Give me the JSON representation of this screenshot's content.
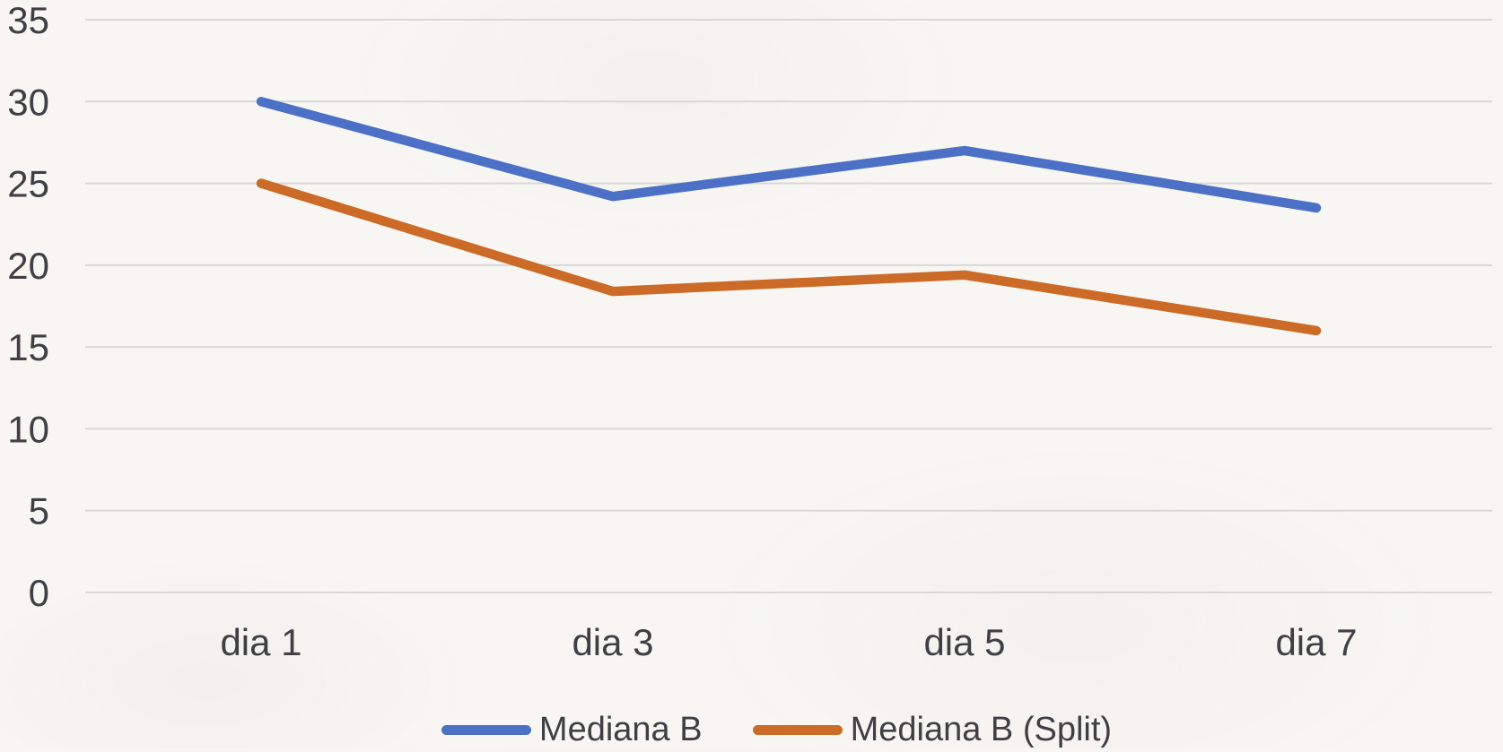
{
  "chart_data": {
    "type": "line",
    "title": "",
    "xlabel": "",
    "ylabel": "",
    "categories": [
      "dia 1",
      "dia 3",
      "dia 5",
      "dia 7"
    ],
    "series": [
      {
        "name": "Mediana B",
        "color": "#4b70c6",
        "values": [
          30,
          24.2,
          27,
          23.5
        ]
      },
      {
        "name": "Mediana B (Split)",
        "color": "#cc6a27",
        "values": [
          25,
          18.4,
          19.4,
          16
        ]
      }
    ],
    "ylim": [
      0,
      35
    ],
    "yticks": [
      35,
      30,
      25,
      20,
      15,
      10,
      5,
      0
    ],
    "grid": true,
    "legend_position": "bottom-center",
    "gridline_color": "#d9d8d6",
    "axis_text_color": "#3f4044",
    "background_color": "#f7f6f3",
    "line_width": 10.5
  }
}
